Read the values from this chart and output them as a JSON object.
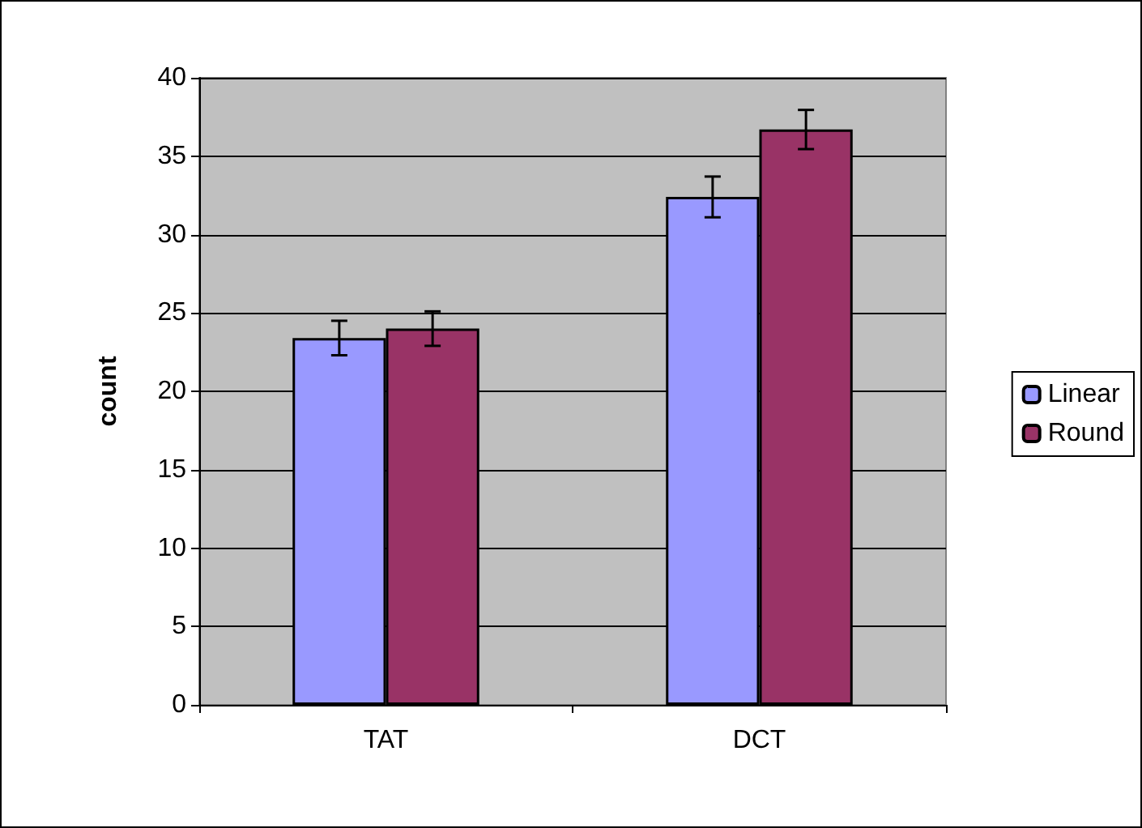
{
  "chart_data": {
    "type": "bar",
    "ylabel": "count",
    "categories": [
      "TAT",
      "DCT"
    ],
    "series": [
      {
        "name": "Linear",
        "color": "#9999ff",
        "values": [
          23.4,
          32.4
        ],
        "errors": [
          1.1,
          1.3
        ]
      },
      {
        "name": "Round",
        "color": "#993366",
        "values": [
          24.0,
          36.7
        ],
        "errors": [
          1.1,
          1.25
        ]
      }
    ],
    "ylim": [
      0,
      40
    ],
    "yticks": [
      0,
      5,
      10,
      15,
      20,
      25,
      30,
      35,
      40
    ],
    "grid": "y",
    "legend": "right"
  }
}
